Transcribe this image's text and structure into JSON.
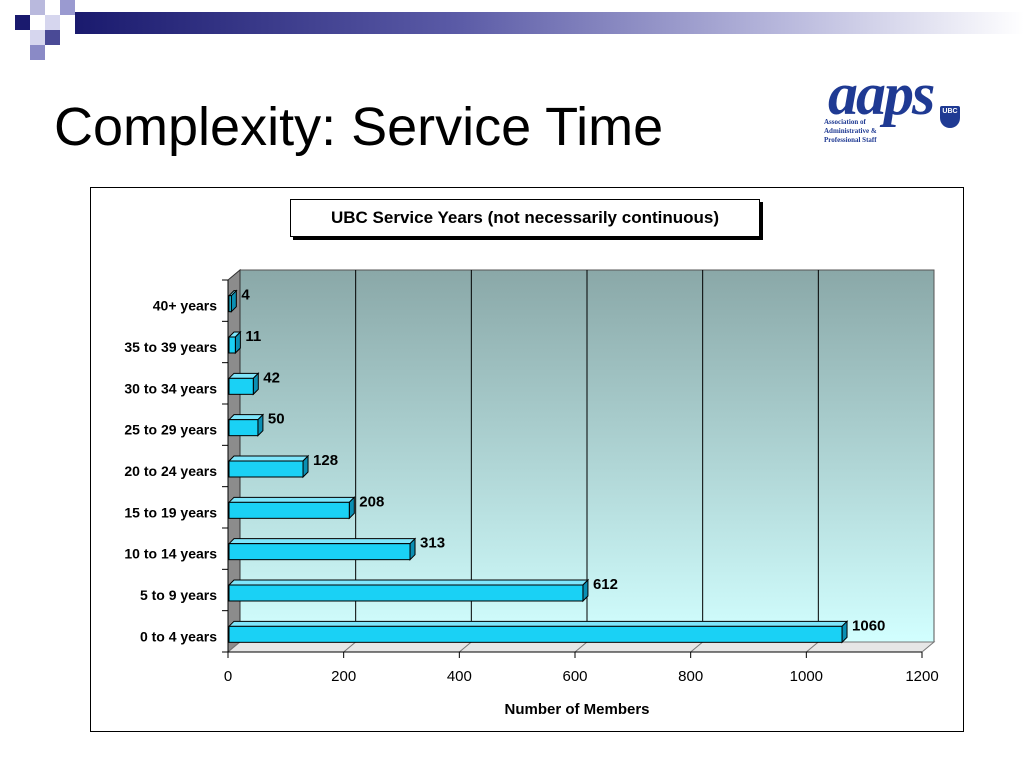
{
  "slide": {
    "title": "Complexity: Service Time"
  },
  "logo": {
    "wordmark": "aaps",
    "crest_text": "UBC",
    "org_line1": "Association of",
    "org_line2": "Administrative &",
    "org_line3": "Professional Staff"
  },
  "colors": {
    "bar_fill": "#1ad1f5",
    "bar_top": "#7fe6fb",
    "bar_side": "#0b8fb3",
    "plot_top": "#8aa8a8",
    "plot_bottom": "#d2ffff",
    "title_band": "#1a1a6e"
  },
  "chart_data": {
    "type": "bar",
    "orientation": "horizontal",
    "title": "UBC Service Years (not necessarily continuous)",
    "xlabel": "Number of Members",
    "ylabel": "",
    "categories": [
      "0 to 4 years",
      "5 to 9 years",
      "10 to 14 years",
      "15 to 19 years",
      "20 to 24 years",
      "25 to 29 years",
      "30 to 34 years",
      "35 to 39 years",
      "40+ years"
    ],
    "values": [
      1060,
      612,
      313,
      208,
      128,
      50,
      42,
      11,
      4
    ],
    "xlim": [
      0,
      1200
    ],
    "xticks": [
      0,
      200,
      400,
      600,
      800,
      1000,
      1200
    ],
    "grid": true,
    "legend": "none",
    "style": "3d"
  }
}
